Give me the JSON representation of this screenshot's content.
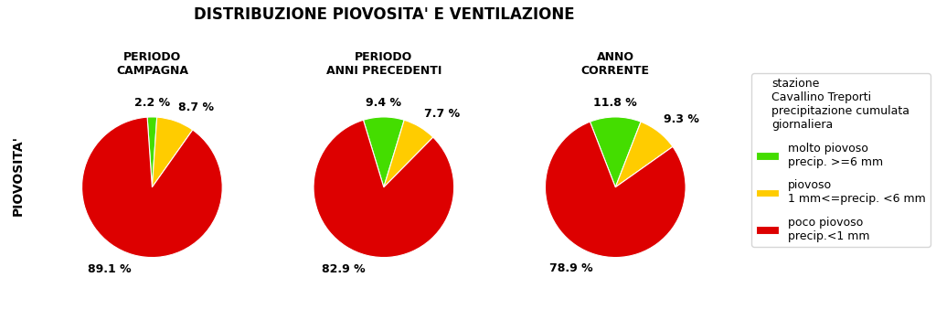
{
  "title": "DISTRIBUZIONE PIOVOSITA' E VENTILAZIONE",
  "ylabel": "PIOVOSITA'",
  "legend_title": "stazione\nCavallino Treporti\nprecipitazione cumulata\ngiornaliera",
  "legend": "center right",
  "chart_data": [
    {
      "type": "pie",
      "title": "PERIODO\nCAMPAGNA",
      "categories": [
        "molto piovoso\nprecip. >=6 mm",
        "piovoso\n1 mm<=precip. <6 mm",
        "poco piovoso\nprecip.<1 mm"
      ],
      "values": [
        2.2,
        8.7,
        89.1
      ],
      "value_labels": [
        "2.2 %",
        "8.7 %",
        "89.1 %"
      ],
      "colors": [
        "#44dd00",
        "#ffcc00",
        "#dd0000"
      ]
    },
    {
      "type": "pie",
      "title": "PERIODO\nANNI PRECEDENTI",
      "categories": [
        "molto piovoso\nprecip. >=6 mm",
        "piovoso\n1 mm<=precip. <6 mm",
        "poco piovoso\nprecip.<1 mm"
      ],
      "values": [
        9.4,
        7.7,
        82.9
      ],
      "value_labels": [
        "9.4 %",
        "7.7 %",
        "82.9 %"
      ],
      "colors": [
        "#44dd00",
        "#ffcc00",
        "#dd0000"
      ]
    },
    {
      "type": "pie",
      "title": "ANNO\nCORRENTE",
      "categories": [
        "molto piovoso\nprecip. >=6 mm",
        "piovoso\n1 mm<=precip. <6 mm",
        "poco piovoso\nprecip.<1 mm"
      ],
      "values": [
        11.8,
        9.3,
        78.9
      ],
      "value_labels": [
        "11.8 %",
        "9.3 %",
        "78.9 %"
      ],
      "colors": [
        "#44dd00",
        "#ffcc00",
        "#dd0000"
      ]
    }
  ]
}
